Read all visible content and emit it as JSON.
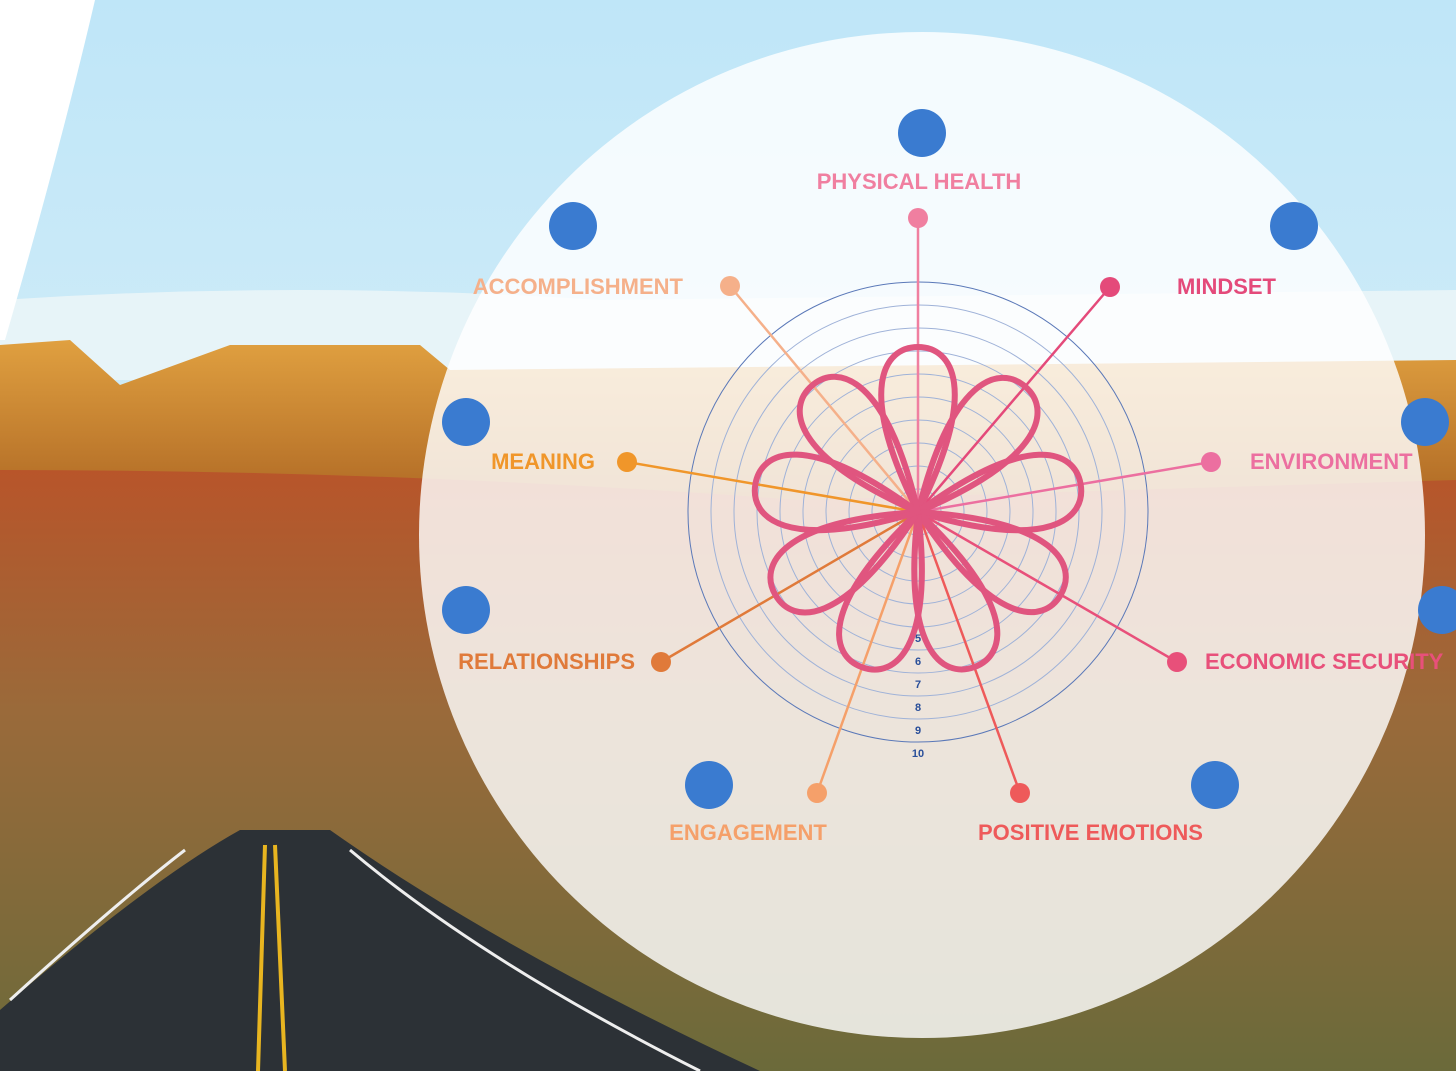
{
  "dimensions": [
    {
      "label": "PHYSICAL HEALTH"
    },
    {
      "label": "MINDSET"
    },
    {
      "label": "ENVIRONMENT"
    },
    {
      "label": "ECONOMIC SECURITY"
    },
    {
      "label": "POSITIVE EMOTIONS"
    },
    {
      "label": "ENGAGEMENT"
    },
    {
      "label": "RELATIONSHIPS"
    },
    {
      "label": "MEANING"
    },
    {
      "label": "ACCOMPLISHMENT"
    }
  ],
  "scale_labels": [
    5,
    6,
    7,
    8,
    9,
    10
  ]
}
